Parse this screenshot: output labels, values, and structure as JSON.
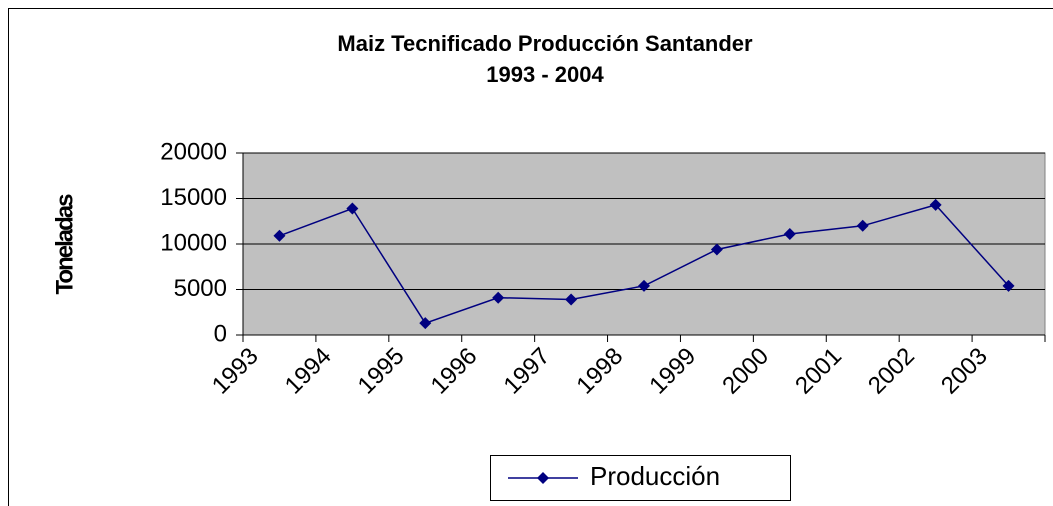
{
  "chart_data": {
    "type": "line",
    "title": "Maiz Tecnificado Producción Santander",
    "subtitle": "1993 - 2004",
    "y_label": "Toneladas",
    "categories": [
      "1993",
      "1994",
      "1995",
      "1996",
      "1997",
      "1998",
      "1999",
      "2000",
      "2001",
      "2002",
      "2003"
    ],
    "series": [
      {
        "name": "Producción",
        "color": "#000080",
        "values": [
          10900,
          13900,
          1300,
          4100,
          3900,
          5400,
          9400,
          11100,
          12000,
          14300,
          5400
        ]
      }
    ],
    "ylim": [
      0,
      20000
    ],
    "yticks": [
      0,
      5000,
      10000,
      15000,
      20000
    ],
    "grid": true,
    "legend": "bottom"
  }
}
